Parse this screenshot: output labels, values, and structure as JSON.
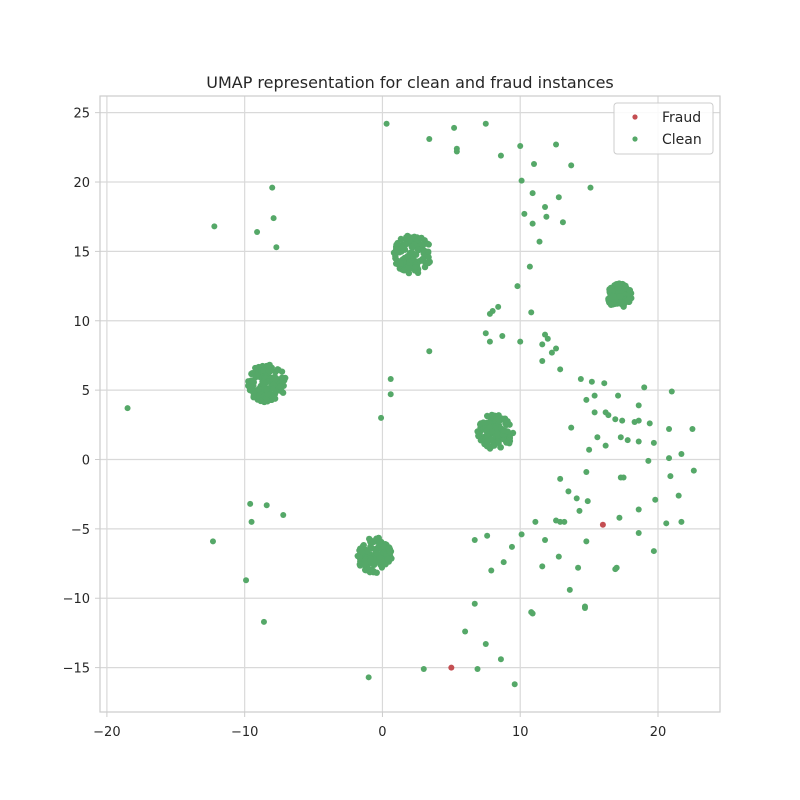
{
  "chart_data": {
    "type": "scatter",
    "title": "UMAP representation for clean and fraud instances",
    "xlabel": "",
    "ylabel": "",
    "xlim": [
      -20.5,
      24.5
    ],
    "ylim": [
      -18.2,
      26.2
    ],
    "xticks": [
      -20,
      -10,
      0,
      10,
      20
    ],
    "yticks": [
      -15,
      -10,
      -5,
      0,
      5,
      10,
      15,
      20,
      25
    ],
    "xtick_labels": [
      "−20",
      "−10",
      "0",
      "10",
      "20"
    ],
    "ytick_labels": [
      "−15",
      "−10",
      "−5",
      "0",
      "5",
      "10",
      "15",
      "20",
      "25"
    ],
    "grid": true,
    "legend_position": "top-right",
    "colors": {
      "fraud": "#c44e52",
      "clean": "#55a868",
      "grid": "#d9d9d9",
      "spine": "#cccccc"
    },
    "series": [
      {
        "name": "Fraud",
        "color": "#c44e52",
        "points": [
          [
            16.0,
            -4.7
          ],
          [
            5.0,
            -15.0
          ]
        ]
      },
      {
        "name": "Clean",
        "color": "#55a868",
        "clusters": [
          {
            "x": 2.2,
            "y": 14.8,
            "spread": 1.4
          },
          {
            "x": -8.4,
            "y": 5.5,
            "spread": 1.4
          },
          {
            "x": 8.2,
            "y": 2.0,
            "spread": 1.3
          },
          {
            "x": -0.6,
            "y": -6.9,
            "spread": 1.3
          },
          {
            "x": 17.2,
            "y": 11.8,
            "spread": 0.9
          }
        ],
        "points": [
          [
            0.3,
            24.2
          ],
          [
            3.4,
            23.1
          ],
          [
            5.2,
            23.9
          ],
          [
            7.5,
            24.2
          ],
          [
            5.4,
            22.4
          ],
          [
            5.4,
            22.2
          ],
          [
            8.6,
            21.9
          ],
          [
            10.0,
            22.6
          ],
          [
            12.6,
            22.7
          ],
          [
            13.7,
            21.2
          ],
          [
            11.0,
            21.3
          ],
          [
            10.1,
            20.1
          ],
          [
            15.1,
            19.6
          ],
          [
            10.9,
            19.2
          ],
          [
            12.8,
            18.9
          ],
          [
            11.8,
            18.2
          ],
          [
            10.3,
            17.7
          ],
          [
            11.9,
            17.5
          ],
          [
            10.9,
            17.0
          ],
          [
            13.1,
            17.1
          ],
          [
            11.4,
            15.7
          ],
          [
            10.7,
            13.9
          ],
          [
            9.8,
            12.5
          ],
          [
            8.4,
            11.0
          ],
          [
            8.0,
            10.7
          ],
          [
            7.8,
            10.5
          ],
          [
            10.8,
            10.6
          ],
          [
            7.5,
            9.1
          ],
          [
            8.7,
            8.9
          ],
          [
            7.8,
            8.5
          ],
          [
            11.8,
            9.0
          ],
          [
            12.0,
            8.7
          ],
          [
            11.6,
            8.3
          ],
          [
            12.6,
            8.0
          ],
          [
            12.3,
            7.7
          ],
          [
            10.0,
            8.5
          ],
          [
            11.6,
            7.1
          ],
          [
            12.9,
            6.5
          ],
          [
            3.4,
            7.8
          ],
          [
            0.6,
            5.8
          ],
          [
            0.6,
            4.7
          ],
          [
            -0.1,
            3.0
          ],
          [
            -12.2,
            16.8
          ],
          [
            -8.0,
            19.6
          ],
          [
            -7.9,
            17.4
          ],
          [
            -9.1,
            16.4
          ],
          [
            -7.7,
            15.3
          ],
          [
            -18.5,
            3.7
          ],
          [
            14.4,
            5.8
          ],
          [
            15.2,
            5.6
          ],
          [
            16.1,
            5.5
          ],
          [
            19.0,
            5.2
          ],
          [
            21.0,
            4.9
          ],
          [
            14.8,
            4.3
          ],
          [
            15.4,
            4.6
          ],
          [
            17.1,
            4.6
          ],
          [
            18.6,
            3.9
          ],
          [
            15.4,
            3.4
          ],
          [
            16.2,
            3.4
          ],
          [
            16.4,
            3.2
          ],
          [
            16.9,
            2.9
          ],
          [
            17.4,
            2.8
          ],
          [
            18.3,
            2.7
          ],
          [
            18.6,
            2.8
          ],
          [
            19.4,
            2.6
          ],
          [
            20.8,
            2.2
          ],
          [
            22.5,
            2.2
          ],
          [
            13.7,
            2.3
          ],
          [
            15.6,
            1.6
          ],
          [
            16.2,
            1.0
          ],
          [
            17.3,
            1.6
          ],
          [
            17.8,
            1.4
          ],
          [
            18.6,
            1.3
          ],
          [
            19.7,
            1.2
          ],
          [
            15.0,
            0.7
          ],
          [
            20.8,
            0.1
          ],
          [
            19.3,
            -0.1
          ],
          [
            21.7,
            0.4
          ],
          [
            22.6,
            -0.8
          ],
          [
            14.8,
            -0.9
          ],
          [
            17.3,
            -1.3
          ],
          [
            17.5,
            -1.3
          ],
          [
            20.9,
            -1.2
          ],
          [
            12.9,
            -1.4
          ],
          [
            13.5,
            -2.3
          ],
          [
            14.1,
            -2.8
          ],
          [
            14.9,
            -3.0
          ],
          [
            19.8,
            -2.9
          ],
          [
            21.5,
            -2.6
          ],
          [
            14.3,
            -3.7
          ],
          [
            18.6,
            -3.6
          ],
          [
            11.1,
            -4.5
          ],
          [
            12.6,
            -4.4
          ],
          [
            12.9,
            -4.5
          ],
          [
            13.2,
            -4.5
          ],
          [
            17.2,
            -4.2
          ],
          [
            20.6,
            -4.6
          ],
          [
            21.7,
            -4.5
          ],
          [
            10.1,
            -5.4
          ],
          [
            11.8,
            -5.8
          ],
          [
            14.8,
            -5.9
          ],
          [
            18.6,
            -5.3
          ],
          [
            9.4,
            -6.3
          ],
          [
            19.7,
            -6.6
          ],
          [
            12.8,
            -7.0
          ],
          [
            8.8,
            -7.4
          ],
          [
            11.6,
            -7.7
          ],
          [
            14.2,
            -7.8
          ],
          [
            17.0,
            -7.8
          ],
          [
            16.9,
            -7.9
          ],
          [
            7.9,
            -8.0
          ],
          [
            6.7,
            -5.8
          ],
          [
            7.6,
            -5.5
          ],
          [
            13.6,
            -9.4
          ],
          [
            14.7,
            -10.6
          ],
          [
            14.7,
            -10.7
          ],
          [
            6.7,
            -10.4
          ],
          [
            10.8,
            -11.0
          ],
          [
            10.9,
            -11.1
          ],
          [
            6.0,
            -12.4
          ],
          [
            7.5,
            -13.3
          ],
          [
            8.6,
            -14.4
          ],
          [
            3.0,
            -15.1
          ],
          [
            6.9,
            -15.1
          ],
          [
            9.6,
            -16.2
          ],
          [
            -1.0,
            -15.7
          ],
          [
            -12.3,
            -5.9
          ],
          [
            -9.6,
            -3.2
          ],
          [
            -8.4,
            -3.3
          ],
          [
            -9.5,
            -4.5
          ],
          [
            -7.2,
            -4.0
          ],
          [
            -9.9,
            -8.7
          ],
          [
            -8.6,
            -11.7
          ]
        ]
      }
    ]
  }
}
